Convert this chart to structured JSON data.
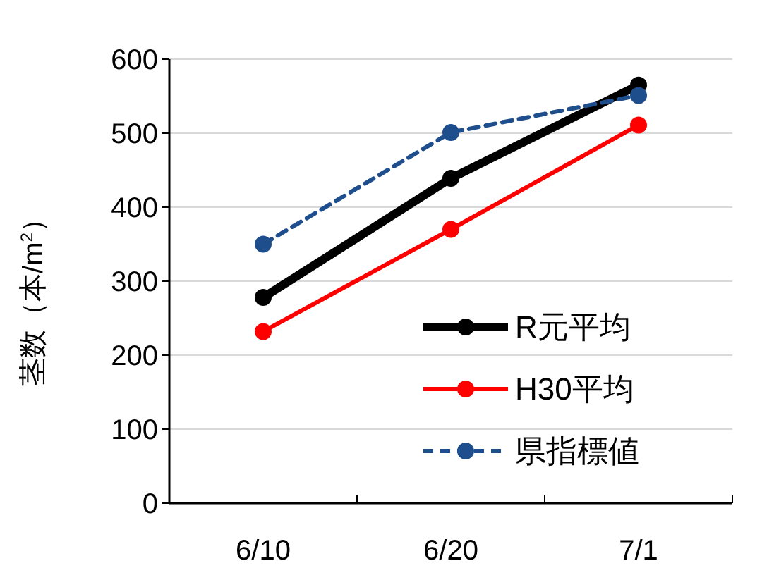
{
  "chart_data": {
    "type": "line",
    "ylabel": "茎数（本/m$^{2}$）",
    "categories": [
      "6/10",
      "6/20",
      "7/1"
    ],
    "series": [
      {
        "name": "R元平均",
        "color": "#000000",
        "values": [
          278,
          439,
          565
        ],
        "line_style": "solid"
      },
      {
        "name": "H30平均",
        "color": "#ff0000",
        "values": [
          232,
          370,
          511
        ],
        "line_style": "solid"
      },
      {
        "name": "県指標値",
        "color": "#1f4e8c",
        "values": [
          350,
          501,
          551
        ],
        "line_style": "dashed"
      }
    ],
    "ylim": [
      0,
      600
    ],
    "yticks": [
      0,
      100,
      200,
      300,
      400,
      500,
      600
    ],
    "grid": "y",
    "legend": "bottom right",
    "marker": "circle"
  }
}
